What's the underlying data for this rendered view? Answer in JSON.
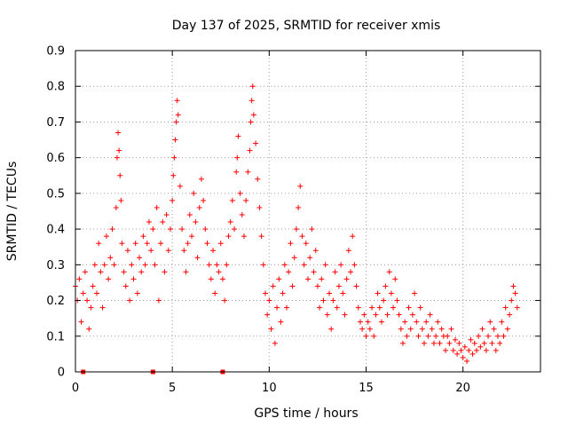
{
  "chart_data": {
    "type": "scatter",
    "title": "Day 137 of 2025, SRMTID for receiver xmis",
    "xlabel": "GPS time / hours",
    "ylabel": "SRMTID / TECUs",
    "xlim": [
      0,
      24
    ],
    "ylim": [
      0,
      0.9
    ],
    "x_ticks": [
      0,
      5,
      10,
      15,
      20
    ],
    "y_ticks": [
      0,
      0.1,
      0.2,
      0.3,
      0.4,
      0.5,
      0.6,
      0.7,
      0.8,
      0.9
    ],
    "x_tick_labels": [
      "0",
      "5",
      "10",
      "15",
      "20"
    ],
    "y_tick_labels": [
      "0",
      "0.1",
      "0.2",
      "0.3",
      "0.4",
      "0.5",
      "0.6",
      "0.7",
      "0.8",
      "0.9"
    ],
    "grid": true,
    "legend": "none",
    "marker": "plus",
    "color": "#ff0000",
    "baseline_markers": [
      0.4,
      4.0,
      7.6
    ],
    "series": [
      {
        "name": "SRMTID",
        "points": [
          [
            0.0,
            0.24
          ],
          [
            0.1,
            0.2
          ],
          [
            0.2,
            0.26
          ],
          [
            0.3,
            0.14
          ],
          [
            0.4,
            0.22
          ],
          [
            0.5,
            0.28
          ],
          [
            0.6,
            0.2
          ],
          [
            0.7,
            0.12
          ],
          [
            0.8,
            0.18
          ],
          [
            0.9,
            0.24
          ],
          [
            1.0,
            0.3
          ],
          [
            1.1,
            0.22
          ],
          [
            1.2,
            0.36
          ],
          [
            1.3,
            0.28
          ],
          [
            1.4,
            0.18
          ],
          [
            1.5,
            0.3
          ],
          [
            1.6,
            0.38
          ],
          [
            1.7,
            0.26
          ],
          [
            1.8,
            0.32
          ],
          [
            1.9,
            0.4
          ],
          [
            2.0,
            0.3
          ],
          [
            2.1,
            0.46
          ],
          [
            2.15,
            0.6
          ],
          [
            2.2,
            0.67
          ],
          [
            2.25,
            0.62
          ],
          [
            2.3,
            0.55
          ],
          [
            2.35,
            0.48
          ],
          [
            2.4,
            0.36
          ],
          [
            2.5,
            0.28
          ],
          [
            2.6,
            0.24
          ],
          [
            2.7,
            0.34
          ],
          [
            2.8,
            0.2
          ],
          [
            2.9,
            0.3
          ],
          [
            3.0,
            0.26
          ],
          [
            3.1,
            0.36
          ],
          [
            3.2,
            0.22
          ],
          [
            3.3,
            0.32
          ],
          [
            3.4,
            0.28
          ],
          [
            3.5,
            0.38
          ],
          [
            3.6,
            0.3
          ],
          [
            3.7,
            0.36
          ],
          [
            3.8,
            0.42
          ],
          [
            3.9,
            0.34
          ],
          [
            4.0,
            0.4
          ],
          [
            4.1,
            0.3
          ],
          [
            4.2,
            0.46
          ],
          [
            4.3,
            0.2
          ],
          [
            4.4,
            0.36
          ],
          [
            4.5,
            0.42
          ],
          [
            4.6,
            0.28
          ],
          [
            4.7,
            0.44
          ],
          [
            4.8,
            0.34
          ],
          [
            4.9,
            0.4
          ],
          [
            5.0,
            0.48
          ],
          [
            5.05,
            0.55
          ],
          [
            5.1,
            0.6
          ],
          [
            5.15,
            0.65
          ],
          [
            5.2,
            0.7
          ],
          [
            5.25,
            0.76
          ],
          [
            5.3,
            0.72
          ],
          [
            5.4,
            0.52
          ],
          [
            5.5,
            0.4
          ],
          [
            5.6,
            0.34
          ],
          [
            5.7,
            0.28
          ],
          [
            5.8,
            0.36
          ],
          [
            5.9,
            0.44
          ],
          [
            6.0,
            0.38
          ],
          [
            6.1,
            0.5
          ],
          [
            6.2,
            0.42
          ],
          [
            6.3,
            0.32
          ],
          [
            6.4,
            0.46
          ],
          [
            6.5,
            0.54
          ],
          [
            6.6,
            0.48
          ],
          [
            6.7,
            0.4
          ],
          [
            6.8,
            0.36
          ],
          [
            6.9,
            0.3
          ],
          [
            7.0,
            0.26
          ],
          [
            7.1,
            0.34
          ],
          [
            7.2,
            0.22
          ],
          [
            7.3,
            0.3
          ],
          [
            7.4,
            0.28
          ],
          [
            7.5,
            0.36
          ],
          [
            7.6,
            0.26
          ],
          [
            7.7,
            0.2
          ],
          [
            7.8,
            0.3
          ],
          [
            7.9,
            0.38
          ],
          [
            8.0,
            0.42
          ],
          [
            8.1,
            0.48
          ],
          [
            8.2,
            0.4
          ],
          [
            8.3,
            0.56
          ],
          [
            8.35,
            0.6
          ],
          [
            8.4,
            0.66
          ],
          [
            8.5,
            0.5
          ],
          [
            8.6,
            0.44
          ],
          [
            8.7,
            0.38
          ],
          [
            8.8,
            0.48
          ],
          [
            8.9,
            0.56
          ],
          [
            9.0,
            0.62
          ],
          [
            9.05,
            0.7
          ],
          [
            9.1,
            0.76
          ],
          [
            9.15,
            0.8
          ],
          [
            9.2,
            0.72
          ],
          [
            9.3,
            0.64
          ],
          [
            9.4,
            0.54
          ],
          [
            9.5,
            0.46
          ],
          [
            9.6,
            0.38
          ],
          [
            9.7,
            0.3
          ],
          [
            9.8,
            0.22
          ],
          [
            9.9,
            0.16
          ],
          [
            10.0,
            0.2
          ],
          [
            10.1,
            0.12
          ],
          [
            10.2,
            0.24
          ],
          [
            10.3,
            0.08
          ],
          [
            10.4,
            0.18
          ],
          [
            10.5,
            0.26
          ],
          [
            10.6,
            0.14
          ],
          [
            10.7,
            0.22
          ],
          [
            10.8,
            0.3
          ],
          [
            10.9,
            0.18
          ],
          [
            11.0,
            0.28
          ],
          [
            11.1,
            0.36
          ],
          [
            11.2,
            0.24
          ],
          [
            11.3,
            0.32
          ],
          [
            11.4,
            0.4
          ],
          [
            11.5,
            0.46
          ],
          [
            11.6,
            0.52
          ],
          [
            11.7,
            0.38
          ],
          [
            11.8,
            0.3
          ],
          [
            11.9,
            0.36
          ],
          [
            12.0,
            0.26
          ],
          [
            12.1,
            0.32
          ],
          [
            12.2,
            0.4
          ],
          [
            12.3,
            0.28
          ],
          [
            12.4,
            0.34
          ],
          [
            12.5,
            0.24
          ],
          [
            12.6,
            0.18
          ],
          [
            12.7,
            0.26
          ],
          [
            12.8,
            0.2
          ],
          [
            12.9,
            0.3
          ],
          [
            13.0,
            0.16
          ],
          [
            13.1,
            0.22
          ],
          [
            13.2,
            0.12
          ],
          [
            13.3,
            0.2
          ],
          [
            13.4,
            0.28
          ],
          [
            13.5,
            0.18
          ],
          [
            13.6,
            0.24
          ],
          [
            13.7,
            0.3
          ],
          [
            13.8,
            0.22
          ],
          [
            13.9,
            0.16
          ],
          [
            14.0,
            0.26
          ],
          [
            14.1,
            0.34
          ],
          [
            14.2,
            0.28
          ],
          [
            14.3,
            0.38
          ],
          [
            14.4,
            0.3
          ],
          [
            14.5,
            0.24
          ],
          [
            14.6,
            0.18
          ],
          [
            14.7,
            0.14
          ],
          [
            14.8,
            0.12
          ],
          [
            14.9,
            0.16
          ],
          [
            15.0,
            0.1
          ],
          [
            15.1,
            0.14
          ],
          [
            15.2,
            0.12
          ],
          [
            15.3,
            0.18
          ],
          [
            15.4,
            0.1
          ],
          [
            15.5,
            0.16
          ],
          [
            15.6,
            0.22
          ],
          [
            15.7,
            0.18
          ],
          [
            15.8,
            0.14
          ],
          [
            15.9,
            0.2
          ],
          [
            16.0,
            0.24
          ],
          [
            16.1,
            0.16
          ],
          [
            16.2,
            0.28
          ],
          [
            16.3,
            0.22
          ],
          [
            16.4,
            0.18
          ],
          [
            16.5,
            0.26
          ],
          [
            16.6,
            0.2
          ],
          [
            16.7,
            0.16
          ],
          [
            16.8,
            0.12
          ],
          [
            16.9,
            0.08
          ],
          [
            17.0,
            0.14
          ],
          [
            17.1,
            0.1
          ],
          [
            17.2,
            0.18
          ],
          [
            17.3,
            0.12
          ],
          [
            17.4,
            0.16
          ],
          [
            17.5,
            0.22
          ],
          [
            17.6,
            0.14
          ],
          [
            17.7,
            0.1
          ],
          [
            17.8,
            0.18
          ],
          [
            17.9,
            0.12
          ],
          [
            18.0,
            0.08
          ],
          [
            18.1,
            0.14
          ],
          [
            18.2,
            0.1
          ],
          [
            18.3,
            0.16
          ],
          [
            18.4,
            0.12
          ],
          [
            18.5,
            0.08
          ],
          [
            18.6,
            0.1
          ],
          [
            18.7,
            0.14
          ],
          [
            18.8,
            0.08
          ],
          [
            18.9,
            0.12
          ],
          [
            19.0,
            0.1
          ],
          [
            19.1,
            0.06
          ],
          [
            19.2,
            0.1
          ],
          [
            19.3,
            0.08
          ],
          [
            19.4,
            0.12
          ],
          [
            19.5,
            0.06
          ],
          [
            19.6,
            0.09
          ],
          [
            19.7,
            0.05
          ],
          [
            19.8,
            0.08
          ],
          [
            19.9,
            0.06
          ],
          [
            20.0,
            0.04
          ],
          [
            20.1,
            0.07
          ],
          [
            20.2,
            0.03
          ],
          [
            20.3,
            0.06
          ],
          [
            20.4,
            0.09
          ],
          [
            20.5,
            0.05
          ],
          [
            20.6,
            0.08
          ],
          [
            20.7,
            0.06
          ],
          [
            20.8,
            0.1
          ],
          [
            20.9,
            0.07
          ],
          [
            21.0,
            0.12
          ],
          [
            21.1,
            0.08
          ],
          [
            21.2,
            0.06
          ],
          [
            21.3,
            0.1
          ],
          [
            21.4,
            0.14
          ],
          [
            21.5,
            0.08
          ],
          [
            21.6,
            0.12
          ],
          [
            21.7,
            0.06
          ],
          [
            21.8,
            0.1
          ],
          [
            21.9,
            0.08
          ],
          [
            22.0,
            0.14
          ],
          [
            22.1,
            0.1
          ],
          [
            22.2,
            0.18
          ],
          [
            22.3,
            0.12
          ],
          [
            22.4,
            0.16
          ],
          [
            22.5,
            0.2
          ],
          [
            22.6,
            0.24
          ],
          [
            22.7,
            0.22
          ],
          [
            22.8,
            0.18
          ]
        ]
      }
    ]
  }
}
